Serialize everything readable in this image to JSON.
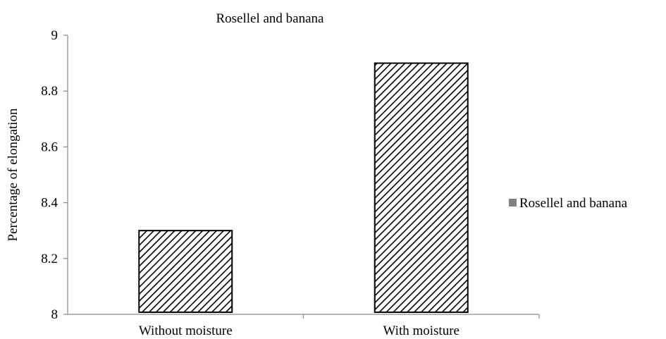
{
  "chart_data": {
    "type": "bar",
    "title": "Rosellel and banana",
    "ylabel": "Percentage of elongation",
    "xlabel": "",
    "categories": [
      "Without moisture",
      "With moisture"
    ],
    "series": [
      {
        "name": "Rosellel and banana",
        "values": [
          8.3,
          8.9
        ]
      }
    ],
    "ylim": [
      8,
      9
    ],
    "yticks": [
      "8",
      "8.2",
      "8.4",
      "8.6",
      "8.8",
      "9"
    ],
    "grid": false,
    "legend": "right"
  }
}
